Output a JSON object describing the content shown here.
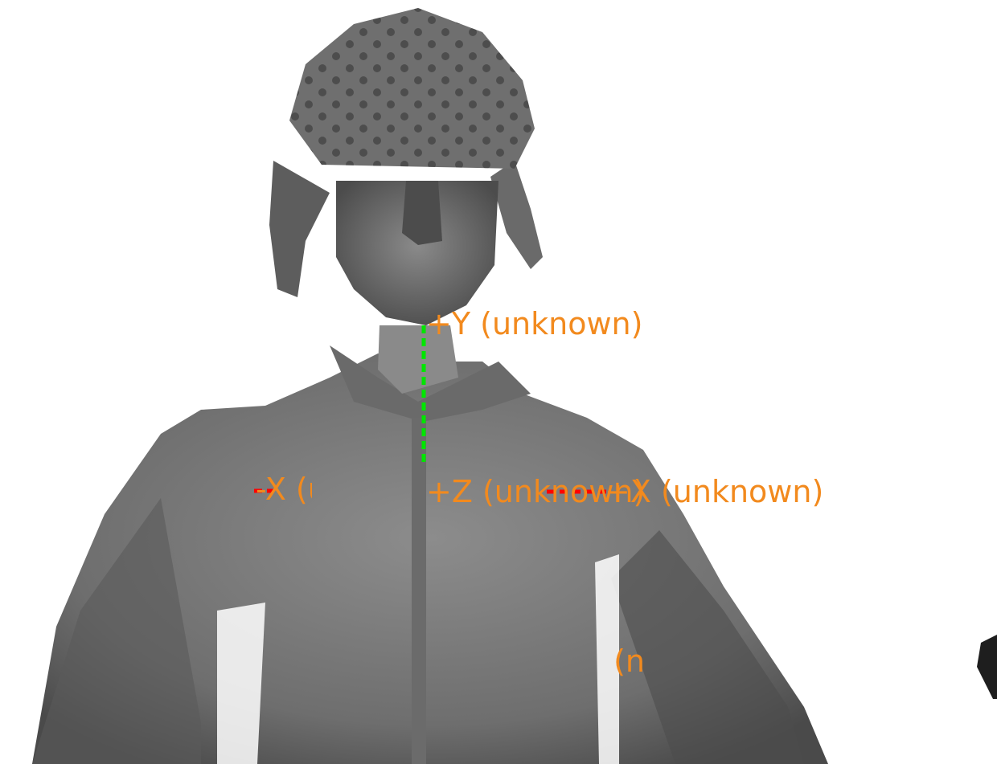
{
  "viewport": {
    "background": "#ffffff",
    "model_color": "#7a7a7a",
    "model_shadow": "#2e2e2e"
  },
  "axes": {
    "label_color": "#f28a1e",
    "pos_y": {
      "label": "+Y (unknown)",
      "color": "#00e600"
    },
    "pos_z": {
      "label": "+Z (unknown)"
    },
    "pos_x": {
      "label": "+X (unknown)",
      "color": "#ff0000"
    },
    "neg_x": {
      "label": "-X (unknown)",
      "color": "#ff0000"
    },
    "fragment": {
      "label": "n)"
    }
  }
}
